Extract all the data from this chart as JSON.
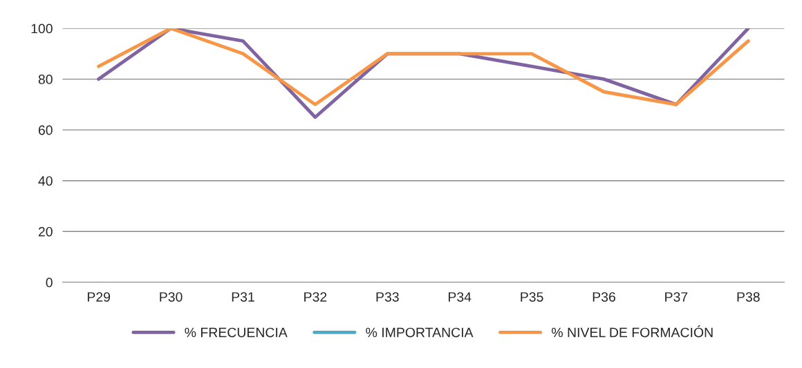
{
  "chart_data": {
    "type": "line",
    "categories": [
      "P29",
      "P30",
      "P31",
      "P32",
      "P33",
      "P34",
      "P35",
      "P36",
      "P37",
      "P38"
    ],
    "series": [
      {
        "name": "% FRECUENCIA",
        "color": "#8064a2",
        "values": [
          80,
          100,
          95,
          65,
          90,
          90,
          85,
          80,
          70,
          100
        ]
      },
      {
        "name": "% IMPORTANCIA",
        "color": "#4bacc6",
        "values": [
          null,
          null,
          null,
          null,
          null,
          null,
          null,
          null,
          null,
          null
        ]
      },
      {
        "name": "% NIVEL DE FORMACIÓN",
        "color": "#f79646",
        "values": [
          85,
          100,
          90,
          70,
          90,
          90,
          90,
          75,
          70,
          95
        ]
      }
    ],
    "ylim": [
      0,
      100
    ],
    "yticks": [
      0,
      20,
      40,
      60,
      80,
      100
    ],
    "grid": "y",
    "legend": "bottom",
    "marker": "none",
    "line_style": "solid"
  }
}
